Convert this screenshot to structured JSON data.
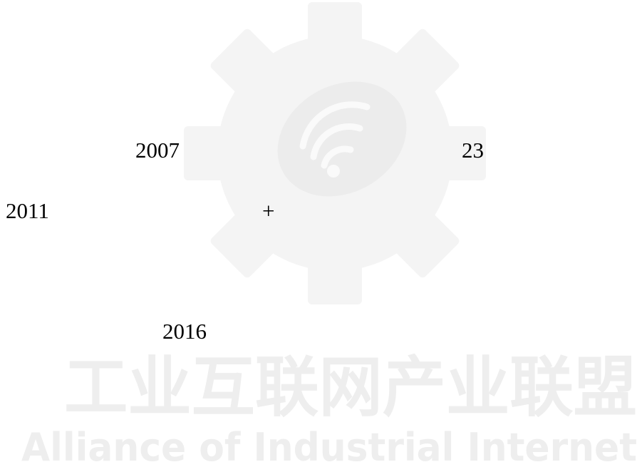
{
  "page": {
    "texts": [
      "2007",
      "23",
      "2011",
      "+",
      "2016"
    ]
  },
  "watermark": {
    "title": "工业互联网产业联盟",
    "subtitle": "Alliance of Industrial Internet"
  }
}
